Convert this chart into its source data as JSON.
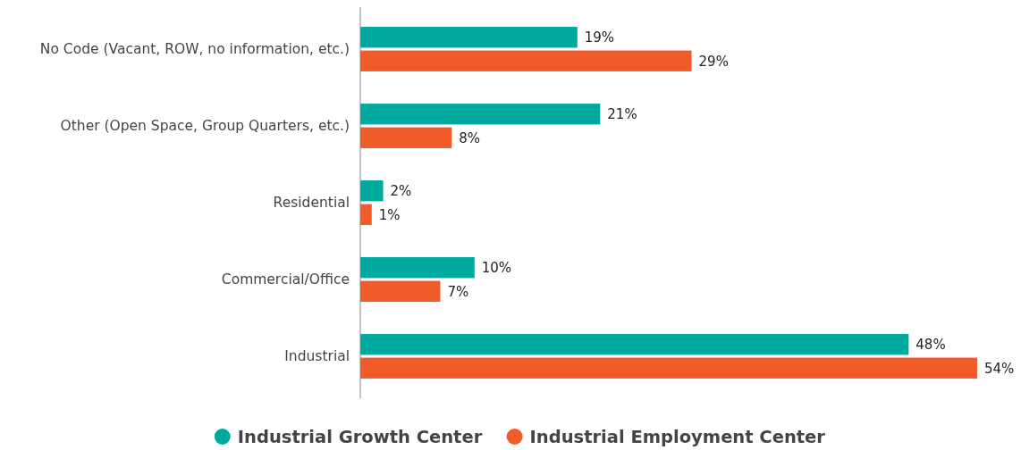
{
  "chart_data": {
    "type": "bar",
    "orientation": "horizontal",
    "categories": [
      "No Code (Vacant, ROW, no information, etc.)",
      "Other (Open Space, Group Quarters, etc.)",
      "Residential",
      "Commercial/Office",
      "Industrial"
    ],
    "series": [
      {
        "name": "Industrial Growth Center",
        "color": "#00a99d",
        "values": [
          19,
          21,
          2,
          10,
          48
        ],
        "value_labels": [
          "19%",
          "21%",
          "2%",
          "10%",
          "48%"
        ]
      },
      {
        "name": "Industrial Employment Center",
        "color": "#f15a29",
        "values": [
          29,
          8,
          1,
          7,
          54
        ],
        "value_labels": [
          "29%",
          "8%",
          "1%",
          "7%",
          "54%"
        ]
      }
    ],
    "legend": "bottom"
  }
}
